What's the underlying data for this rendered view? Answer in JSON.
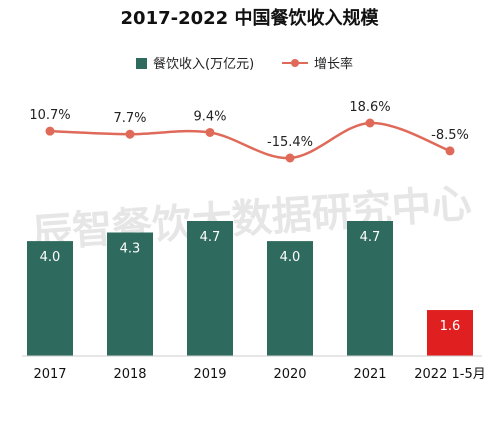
{
  "chart_data": {
    "type": "bar",
    "title": "2017-2022 中国餐饮收入规模",
    "categories": [
      "2017",
      "2018",
      "2019",
      "2020",
      "2021",
      "2022 1-5月"
    ],
    "series": [
      {
        "name": "餐饮收入(万亿元)",
        "kind": "bar",
        "values": [
          4.0,
          4.3,
          4.7,
          4.0,
          4.7,
          1.6
        ],
        "labels": [
          "4.0",
          "4.3",
          "4.7",
          "4.0",
          "4.7",
          "1.6"
        ],
        "color": "#2e6b5e",
        "highlight_color": "#e02020",
        "highlight_index": 5
      },
      {
        "name": "增长率",
        "kind": "line",
        "values": [
          10.7,
          7.7,
          9.4,
          -15.4,
          18.6,
          -8.5
        ],
        "labels": [
          "10.7%",
          "7.7%",
          "9.4%",
          "-15.4%",
          "18.6%",
          "-8.5%"
        ],
        "color": "#e06a5a"
      }
    ],
    "legend_position": "top",
    "grid": false,
    "watermark": "辰智餐饮大数据研究中心"
  }
}
